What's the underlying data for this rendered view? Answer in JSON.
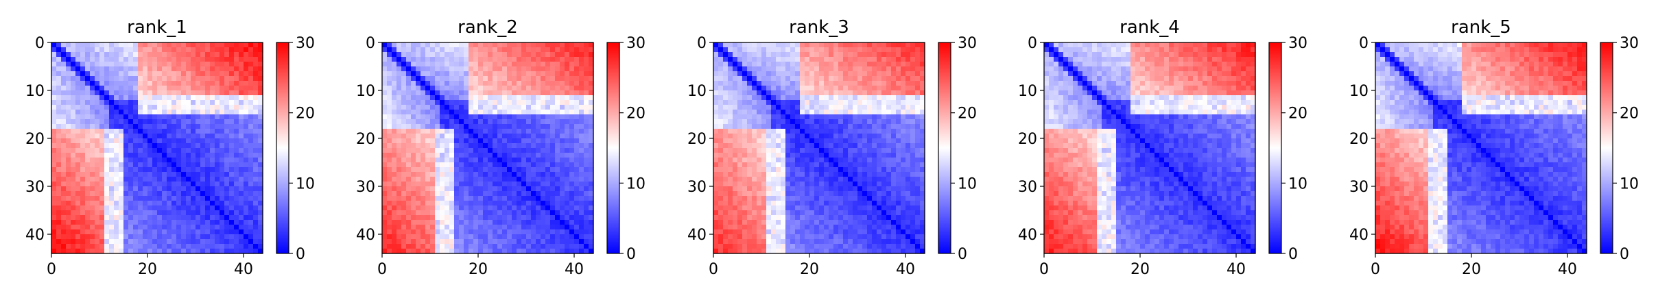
{
  "chart_data": [
    {
      "type": "heatmap",
      "title": "rank_1",
      "n": 44,
      "x_ticks": [
        "0",
        "20",
        "40"
      ],
      "y_ticks": [
        "0",
        "10",
        "20",
        "30",
        "40"
      ],
      "colorbar": {
        "ticks": [
          "0",
          "10",
          "20",
          "30"
        ],
        "range": [
          0,
          30
        ],
        "colormap": [
          "#0000ff",
          "#ffffff",
          "#ff0000"
        ]
      }
    },
    {
      "type": "heatmap",
      "title": "rank_2",
      "n": 44,
      "x_ticks": [
        "0",
        "20",
        "40"
      ],
      "y_ticks": [
        "0",
        "10",
        "20",
        "30",
        "40"
      ],
      "colorbar": {
        "ticks": [
          "0",
          "10",
          "20",
          "30"
        ],
        "range": [
          0,
          30
        ],
        "colormap": [
          "#0000ff",
          "#ffffff",
          "#ff0000"
        ]
      }
    },
    {
      "type": "heatmap",
      "title": "rank_3",
      "n": 44,
      "x_ticks": [
        "0",
        "20",
        "40"
      ],
      "y_ticks": [
        "0",
        "10",
        "20",
        "30",
        "40"
      ],
      "colorbar": {
        "ticks": [
          "0",
          "10",
          "20",
          "30"
        ],
        "range": [
          0,
          30
        ],
        "colormap": [
          "#0000ff",
          "#ffffff",
          "#ff0000"
        ]
      }
    },
    {
      "type": "heatmap",
      "title": "rank_4",
      "n": 44,
      "x_ticks": [
        "0",
        "20",
        "40"
      ],
      "y_ticks": [
        "0",
        "10",
        "20",
        "30",
        "40"
      ],
      "colorbar": {
        "ticks": [
          "0",
          "10",
          "20",
          "30"
        ],
        "range": [
          0,
          30
        ],
        "colormap": [
          "#0000ff",
          "#ffffff",
          "#ff0000"
        ]
      }
    },
    {
      "type": "heatmap",
      "title": "rank_5",
      "n": 44,
      "x_ticks": [
        "0",
        "20",
        "40"
      ],
      "y_ticks": [
        "0",
        "10",
        "20",
        "30",
        "40"
      ],
      "colorbar": {
        "ticks": [
          "0",
          "10",
          "20",
          "30"
        ],
        "range": [
          0,
          30
        ],
        "colormap": [
          "#0000ff",
          "#ffffff",
          "#ff0000"
        ]
      }
    }
  ]
}
